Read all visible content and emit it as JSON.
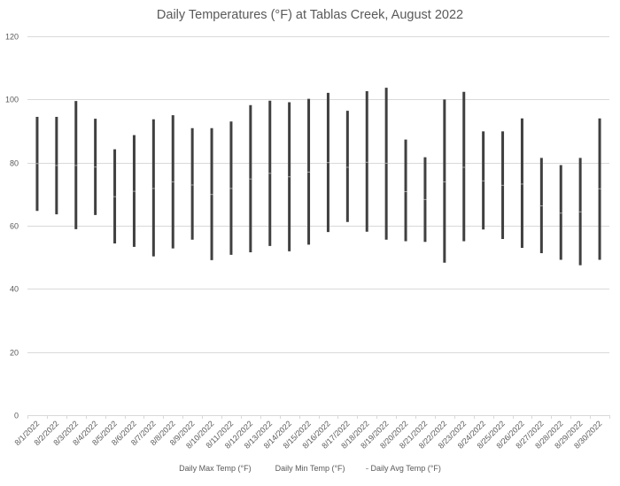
{
  "chart_data": {
    "type": "stock-hlc",
    "title": "Daily Temperatures (°F) at Tablas Creek, August 2022",
    "xlabel": "",
    "ylabel": "",
    "ylim": [
      0,
      120
    ],
    "yticks": [
      0,
      20,
      40,
      60,
      80,
      100,
      120
    ],
    "grid": true,
    "legend_position": "bottom",
    "categories": [
      "8/1/2022",
      "8/2/2022",
      "8/3/2022",
      "8/4/2022",
      "8/5/2022",
      "8/6/2022",
      "8/7/2022",
      "8/8/2022",
      "8/9/2022",
      "8/10/2022",
      "8/11/2022",
      "8/12/2022",
      "8/13/2022",
      "8/14/2022",
      "8/15/2022",
      "8/16/2022",
      "8/17/2022",
      "8/18/2022",
      "8/19/2022",
      "8/20/2022",
      "8/21/2022",
      "8/22/2022",
      "8/23/2022",
      "8/24/2022",
      "8/25/2022",
      "8/26/2022",
      "8/27/2022",
      "8/28/2022",
      "8/29/2022",
      "8/30/2022"
    ],
    "series": [
      {
        "name": "Daily Max Temp (°F)",
        "values": [
          94.5,
          94.5,
          99.5,
          93.9,
          84.2,
          88.7,
          93.7,
          95.0,
          90.9,
          90.9,
          93.0,
          98.2,
          99.6,
          99.1,
          100.2,
          102.1,
          96.4,
          102.6,
          103.7,
          87.3,
          81.7,
          100.0,
          102.4,
          89.9,
          89.9,
          94.0,
          81.5,
          79.2,
          81.5,
          94.0
        ]
      },
      {
        "name": "Daily Min Temp (°F)",
        "values": [
          64.7,
          63.6,
          58.9,
          63.4,
          54.4,
          53.3,
          50.3,
          52.8,
          55.6,
          49.1,
          50.8,
          51.6,
          53.6,
          51.9,
          54.0,
          58.0,
          61.2,
          58.1,
          55.6,
          55.1,
          54.9,
          48.3,
          55.1,
          58.8,
          55.8,
          53.0,
          51.3,
          49.2,
          47.5,
          49.2
        ]
      },
      {
        "name": "Daily Avg Temp (°F)",
        "values": [
          79.7,
          79.1,
          79.1,
          78.6,
          69.2,
          70.9,
          71.8,
          73.9,
          72.9,
          69.9,
          71.8,
          74.8,
          76.6,
          75.5,
          77.0,
          80.0,
          78.5,
          80.1,
          79.8,
          70.8,
          68.3,
          73.9,
          78.5,
          74.2,
          72.8,
          73.2,
          66.3,
          64.0,
          64.4,
          71.7
        ]
      }
    ],
    "colors": {
      "bar": "#404040",
      "avg_marker": "#a6a6a6",
      "grid": "#d9d9d9",
      "text": "#595959"
    }
  },
  "legend": [
    {
      "label": "Daily Max Temp (°F)",
      "marker": ""
    },
    {
      "label": "Daily Min Temp (°F)",
      "marker": ""
    },
    {
      "label": "Daily Avg Temp (°F)",
      "marker": "-"
    }
  ]
}
